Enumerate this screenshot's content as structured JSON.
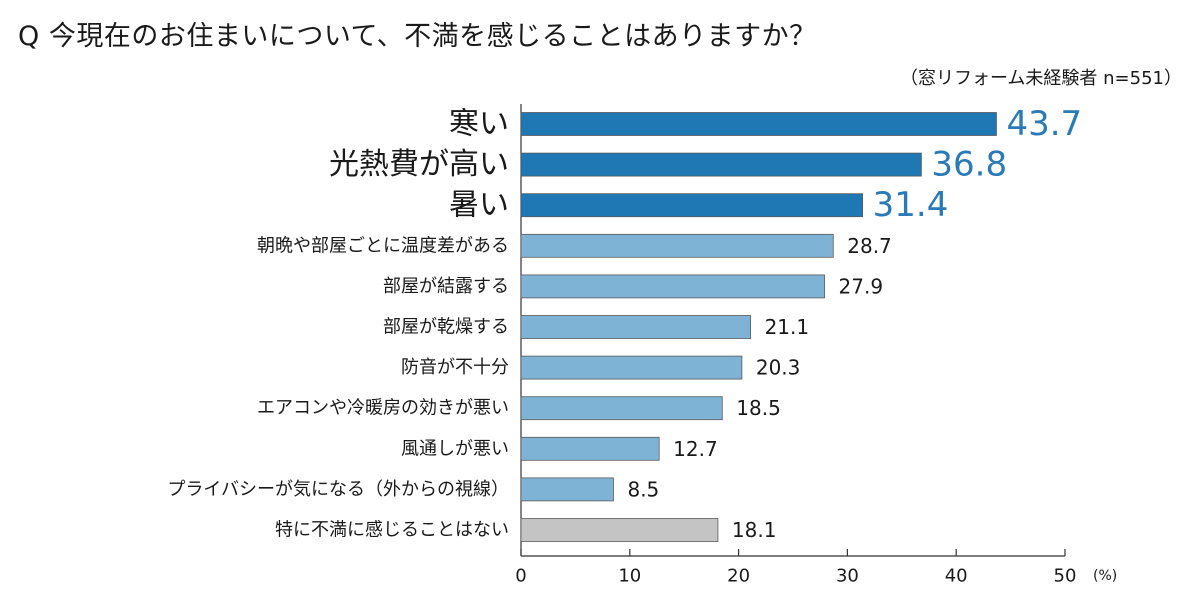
{
  "chart_data": {
    "type": "bar",
    "orientation": "horizontal",
    "title": "Q 今現在のお住まいについて、不満を感じることはありますか？",
    "subtitle": "（窓リフォーム未経験者 n=551）",
    "categories": [
      "寒い",
      "光熱費が高い",
      "暑い",
      "朝晩や部屋ごとに温度差がある",
      "部屋が結露する",
      "部屋が乾燥する",
      "防音が不十分",
      "エアコンや冷暖房の効きが悪い",
      "風通しが悪い",
      "プライバシーが気になる（外からの視線）",
      "特に不満に感じることはない"
    ],
    "values": [
      43.7,
      36.8,
      31.4,
      28.7,
      27.9,
      21.1,
      20.3,
      18.5,
      12.7,
      8.5,
      18.1
    ],
    "value_labels": [
      "43.7",
      "36.8",
      "31.4",
      "28.7",
      "27.9",
      "21.1",
      "20.3",
      "18.5",
      "12.7",
      "8.5",
      "18.1"
    ],
    "highlight": [
      true,
      true,
      true,
      false,
      false,
      false,
      false,
      false,
      false,
      false,
      false
    ],
    "none_category": [
      false,
      false,
      false,
      false,
      false,
      false,
      false,
      false,
      false,
      false,
      true
    ],
    "xlim": [
      0,
      50
    ],
    "xticks": [
      "0",
      "10",
      "20",
      "30",
      "40",
      "50"
    ],
    "xunit": "(%)",
    "grid": false,
    "colors": {
      "highlight_bar": "#1f78b4",
      "normal_bar": "#7fb3d5",
      "none_bar": "#c4c4c4",
      "highlight_value_text": "#2a7ab8",
      "normal_value_text": "#1a1a1a",
      "bar_outline": "#5a5a5a",
      "axis": "#333333"
    }
  }
}
